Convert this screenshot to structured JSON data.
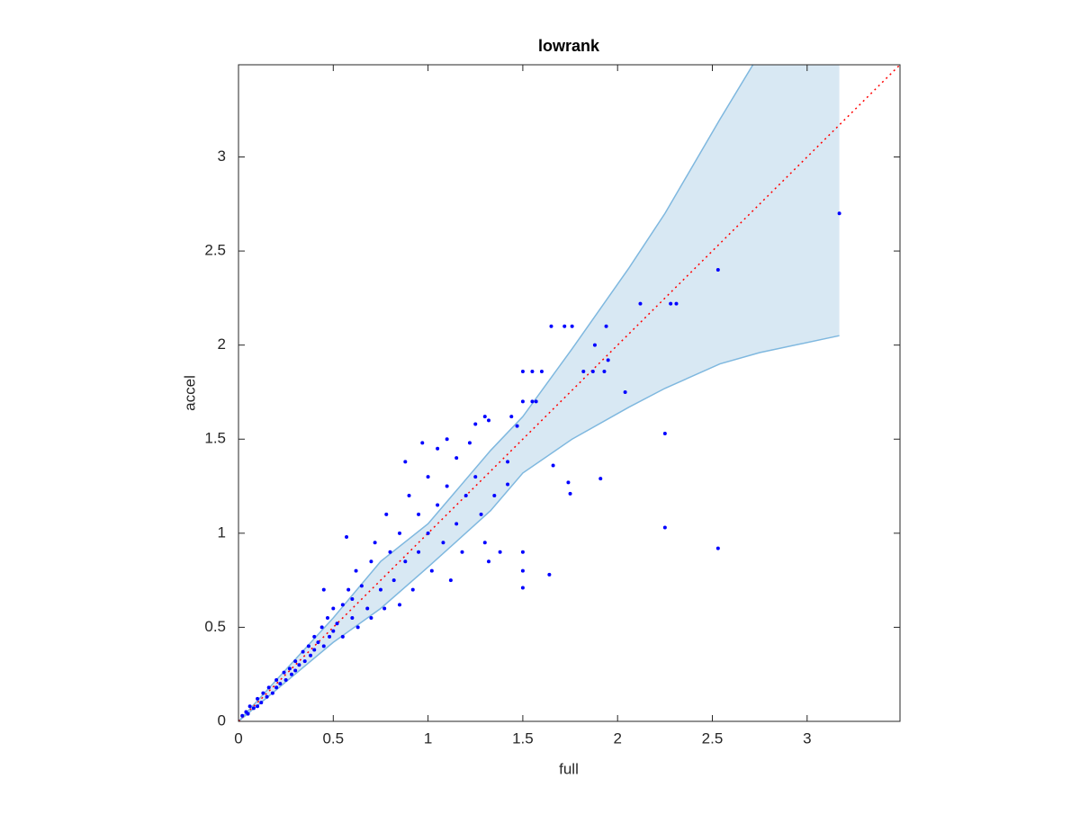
{
  "chart_data": {
    "type": "scatter",
    "title": "lowrank",
    "x_label": "full",
    "y_label": "accel",
    "xlim": [
      0,
      3.49
    ],
    "ylim": [
      0,
      3.49
    ],
    "xticks": [
      0,
      0.5,
      1,
      1.5,
      2,
      2.5,
      3
    ],
    "yticks": [
      0,
      0.5,
      1,
      1.5,
      2,
      2.5,
      3
    ],
    "band": {
      "color": "#d8e8f3",
      "edge_color": "#7fb8df",
      "x": [
        0,
        0.5,
        0.75,
        1.0,
        1.33,
        1.5,
        1.76,
        2.06,
        2.25,
        2.54,
        2.75,
        3.17
      ],
      "upper": [
        0,
        0.55,
        0.85,
        1.05,
        1.44,
        1.62,
        1.98,
        2.41,
        2.7,
        3.2,
        3.55,
        4.3
      ],
      "lower": [
        0,
        0.42,
        0.6,
        0.82,
        1.12,
        1.32,
        1.5,
        1.67,
        1.77,
        1.9,
        1.96,
        2.05
      ]
    },
    "reference_line": {
      "color": "#ff0000",
      "x": [
        0,
        3.49
      ],
      "values": [
        0,
        3.49
      ]
    },
    "series": [
      {
        "color": "#0000ff",
        "x": [
          0.02,
          0.04,
          0.05,
          0.06,
          0.08,
          0.1,
          0.1,
          0.12,
          0.13,
          0.15,
          0.16,
          0.18,
          0.2,
          0.2,
          0.22,
          0.24,
          0.25,
          0.27,
          0.28,
          0.3,
          0.3,
          0.32,
          0.34,
          0.35,
          0.37,
          0.38,
          0.4,
          0.4,
          0.42,
          0.44,
          0.45,
          0.47,
          0.48,
          0.5,
          0.5,
          0.52,
          0.55,
          0.55,
          0.58,
          0.6,
          0.6,
          0.62,
          0.63,
          0.65,
          0.68,
          0.7,
          0.7,
          0.72,
          0.75,
          0.77,
          0.78,
          0.8,
          0.82,
          0.85,
          0.85,
          0.88,
          0.88,
          0.9,
          0.92,
          0.95,
          0.95,
          0.97,
          1.0,
          1.0,
          1.02,
          1.05,
          1.05,
          1.08,
          1.1,
          1.1,
          1.12,
          1.15,
          1.15,
          1.18,
          1.2,
          1.22,
          1.25,
          1.28,
          1.3,
          1.35,
          0.57,
          0.45,
          3.17,
          2.53,
          2.53,
          2.25,
          2.25,
          2.12,
          2.28,
          2.31,
          1.94,
          1.65,
          1.72,
          1.76,
          1.88,
          2.04,
          1.91,
          1.75,
          1.74,
          1.66,
          1.64,
          1.5,
          1.5,
          1.5,
          1.38,
          1.32,
          1.42,
          1.42,
          1.5,
          1.55,
          1.6,
          1.5,
          1.55,
          1.57,
          1.82,
          1.87,
          1.93,
          1.95,
          1.44,
          1.47,
          1.3,
          1.32,
          1.25
        ],
        "values": [
          0.03,
          0.05,
          0.04,
          0.08,
          0.07,
          0.12,
          0.08,
          0.1,
          0.15,
          0.13,
          0.18,
          0.15,
          0.22,
          0.18,
          0.2,
          0.26,
          0.22,
          0.28,
          0.25,
          0.32,
          0.27,
          0.3,
          0.37,
          0.32,
          0.4,
          0.35,
          0.45,
          0.38,
          0.42,
          0.5,
          0.4,
          0.55,
          0.45,
          0.6,
          0.48,
          0.52,
          0.62,
          0.45,
          0.7,
          0.55,
          0.65,
          0.8,
          0.5,
          0.72,
          0.6,
          0.85,
          0.55,
          0.95,
          0.7,
          0.6,
          1.1,
          0.9,
          0.75,
          1.0,
          0.62,
          1.38,
          0.85,
          1.2,
          0.7,
          1.1,
          0.9,
          1.48,
          1.3,
          1.0,
          0.8,
          1.45,
          1.15,
          0.95,
          1.5,
          1.25,
          0.75,
          1.4,
          1.05,
          0.9,
          1.2,
          1.48,
          1.3,
          1.1,
          0.95,
          1.2,
          0.98,
          0.7,
          2.7,
          2.4,
          0.92,
          1.03,
          1.53,
          2.22,
          2.22,
          2.22,
          2.1,
          2.1,
          2.1,
          2.1,
          2.0,
          1.75,
          1.29,
          1.21,
          1.27,
          1.36,
          0.78,
          0.71,
          0.9,
          0.8,
          0.9,
          0.85,
          1.38,
          1.26,
          1.86,
          1.86,
          1.86,
          1.7,
          1.7,
          1.7,
          1.86,
          1.86,
          1.86,
          1.92,
          1.62,
          1.57,
          1.62,
          1.6,
          1.58
        ]
      }
    ]
  }
}
